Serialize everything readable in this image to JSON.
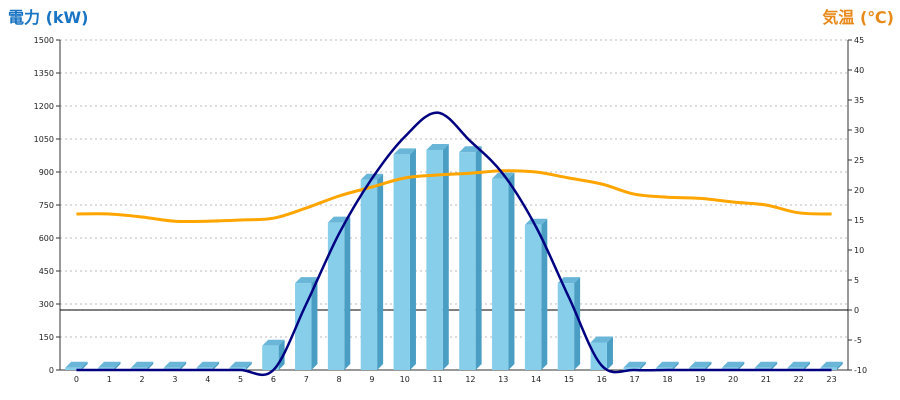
{
  "chart_data": {
    "type": "bar",
    "colors": {
      "power_title": "#1a74c4",
      "temp_title": "#e88a1a",
      "bar_front": "#87ceeb",
      "bar_side": "#4a9ec4",
      "bar_top": "#6ab6d8",
      "power_line": "#000080",
      "temp_line": "#ffa500",
      "grid": "#bbbbbb"
    },
    "left_axis": {
      "title": "電力 (kW)",
      "ylim": [
        0,
        1500
      ],
      "ticks": [
        "0",
        "150",
        "300",
        "450",
        "600",
        "750",
        "900",
        "1050",
        "1200",
        "1350",
        "1500"
      ]
    },
    "right_axis": {
      "title": "気温 (℃)",
      "ylim": [
        -10,
        45
      ],
      "ticks": [
        "-10",
        "-5",
        "0",
        "5",
        "10",
        "15",
        "20",
        "25",
        "30",
        "35",
        "40",
        "45"
      ]
    },
    "categories": [
      "0",
      "1",
      "2",
      "3",
      "4",
      "5",
      "6",
      "7",
      "8",
      "9",
      "10",
      "11",
      "12",
      "13",
      "14",
      "15",
      "16",
      "17",
      "18",
      "19",
      "20",
      "21",
      "22",
      "23"
    ],
    "grid": true,
    "zero_line_temp": 0,
    "series": [
      {
        "values": [
          10,
          10,
          10,
          10,
          10,
          10,
          110,
          395,
          670,
          865,
          980,
          1000,
          990,
          870,
          660,
          395,
          125,
          10,
          10,
          10,
          10,
          10,
          10,
          10
        ]
      },
      {
        "type": "line",
        "axis": "left",
        "values": [
          0,
          0,
          0,
          0,
          0,
          0,
          0,
          300,
          620,
          870,
          1060,
          1170,
          1040,
          890,
          650,
          330,
          20,
          0,
          0,
          0,
          0,
          0,
          0,
          0
        ]
      },
      {
        "type": "line",
        "axis": "right",
        "values": [
          16,
          16,
          15.5,
          14.8,
          14.8,
          15,
          15.3,
          17,
          19,
          20.5,
          22,
          22.5,
          22.8,
          23.2,
          23,
          22,
          21,
          19.3,
          18.8,
          18.6,
          18,
          17.5,
          16.2,
          16
        ]
      }
    ]
  }
}
